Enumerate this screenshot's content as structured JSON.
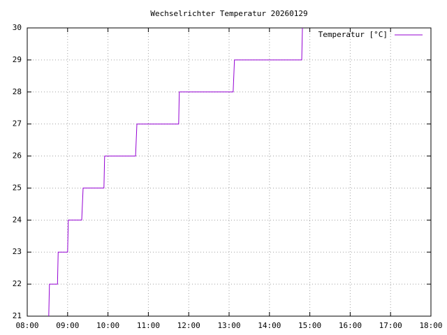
{
  "chart_data": {
    "type": "line",
    "title": "Wechselrichter Temperatur 20260129",
    "x": [
      "08:32",
      "08:33",
      "08:45",
      "08:46",
      "09:00",
      "09:01",
      "09:21",
      "09:23",
      "09:54",
      "09:55",
      "10:41",
      "10:43",
      "11:45",
      "11:46",
      "13:06",
      "13:08",
      "14:48",
      "14:49"
    ],
    "series": [
      {
        "name": "Temperatur [°C]",
        "color": "#9400d3",
        "values": [
          21,
          22,
          22,
          23,
          23,
          24,
          24,
          25,
          25,
          26,
          26,
          27,
          27,
          28,
          28,
          29,
          29,
          30
        ]
      }
    ],
    "xlim": [
      "08:00",
      "18:00"
    ],
    "xticks": [
      "08:00",
      "09:00",
      "10:00",
      "11:00",
      "12:00",
      "13:00",
      "14:00",
      "15:00",
      "16:00",
      "17:00",
      "18:00"
    ],
    "ylim": [
      21,
      30
    ],
    "yticks": [
      21,
      22,
      23,
      24,
      25,
      26,
      27,
      28,
      29,
      30
    ],
    "grid": true,
    "legend": "top-right"
  }
}
